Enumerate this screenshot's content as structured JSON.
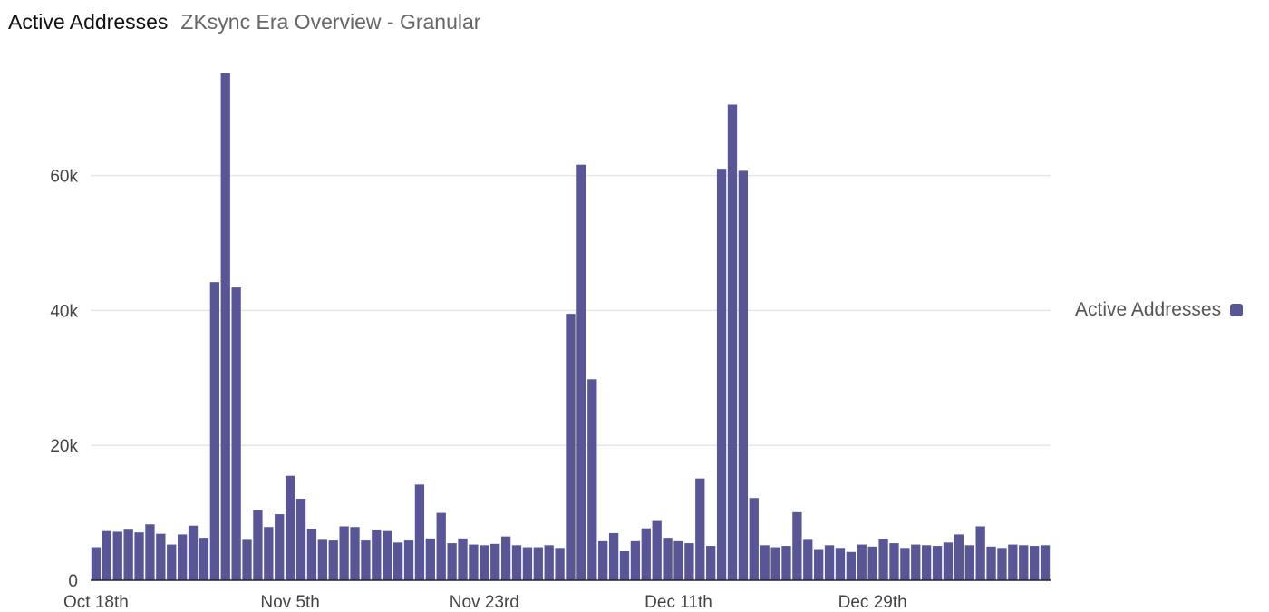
{
  "header": {
    "title": "Active Addresses",
    "subtitle": "ZKsync Era Overview - Granular"
  },
  "colors": {
    "bar": "#585696",
    "grid": "#e6e6e6",
    "axis": "#222222"
  },
  "chart_data": {
    "type": "bar",
    "title": "Active Addresses",
    "subtitle": "ZKsync Era Overview - Granular",
    "xlabel": "",
    "ylabel": "",
    "x_start": "Oct 18th",
    "x_tick_labels": [
      "Oct 18th",
      "Nov 5th",
      "Nov 23rd",
      "Dec 11th",
      "Dec 29th"
    ],
    "x_tick_every_days": 18,
    "y_ticks": [
      0,
      20000,
      40000,
      60000
    ],
    "y_tick_labels": [
      "0",
      "20k",
      "40k",
      "60k"
    ],
    "ylim": [
      0,
      75000
    ],
    "grid": true,
    "legend_position": "right",
    "series": [
      {
        "name": "Active Addresses",
        "values": [
          4900,
          7300,
          7200,
          7500,
          7100,
          8300,
          6900,
          5300,
          6800,
          8100,
          6300,
          44200,
          75200,
          43400,
          6000,
          10400,
          7900,
          9800,
          15500,
          12100,
          7600,
          6000,
          5900,
          8000,
          7900,
          5900,
          7400,
          7300,
          5600,
          5900,
          14200,
          6200,
          10000,
          5500,
          6200,
          5300,
          5200,
          5400,
          6500,
          5200,
          4900,
          4900,
          5200,
          4800,
          39500,
          61600,
          29800,
          5800,
          7000,
          4300,
          5800,
          7700,
          8800,
          6300,
          5800,
          5500,
          15100,
          5100,
          61000,
          70500,
          60700,
          12200,
          5200,
          4900,
          5100,
          10100,
          6000,
          4500,
          5200,
          4800,
          4200,
          5300,
          5000,
          6100,
          5500,
          4800,
          5300,
          5200,
          5100,
          5600,
          6800,
          5200,
          8000,
          5000,
          4800,
          5300,
          5200,
          5100,
          5200
        ]
      }
    ]
  }
}
